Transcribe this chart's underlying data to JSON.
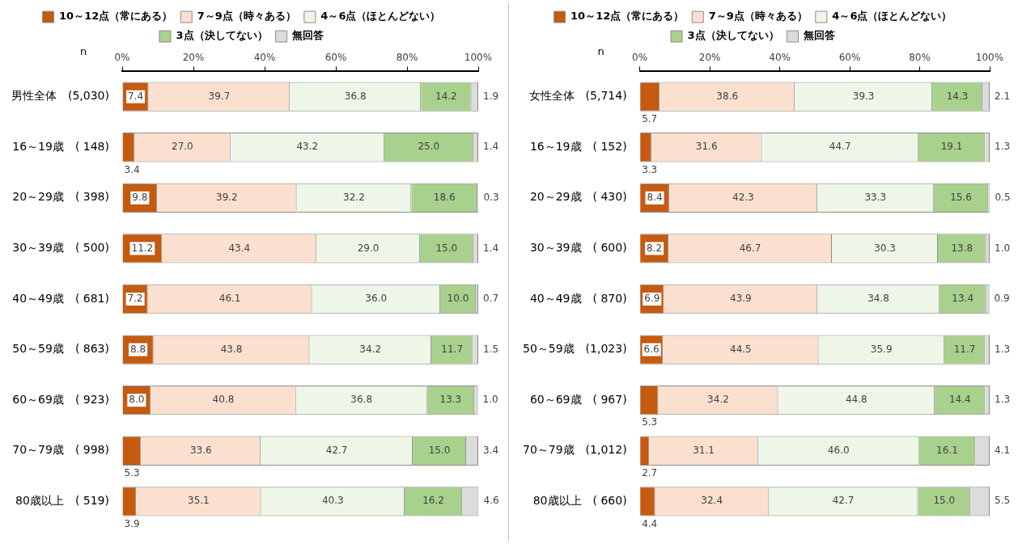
{
  "chart_data": [
    {
      "type": "bar",
      "orientation": "horizontal",
      "stacked": true,
      "legend": "top",
      "annotations": [
        "n"
      ],
      "categories": [
        "男性全体　(5,030)",
        "16～19歳　( 148)",
        "20～29歳　( 398)",
        "30～39歳　( 500)",
        "40～49歳　( 681)",
        "50～59歳　( 863)",
        "60～69歳　( 923)",
        "70～79歳　( 998)",
        "80歳以上　( 519)"
      ],
      "xlim": [
        0,
        100
      ],
      "xticks": [
        {
          "value": 0,
          "label": "0%"
        },
        {
          "value": 20,
          "label": "20%"
        },
        {
          "value": 40,
          "label": "40%"
        },
        {
          "value": 60,
          "label": "60%"
        },
        {
          "value": 80,
          "label": "80%"
        },
        {
          "value": 100,
          "label": "100%"
        }
      ],
      "series": [
        {
          "name": "10～12点（常にある）",
          "color": "#c55a11",
          "values": [
            7.4,
            3.4,
            9.8,
            11.2,
            7.2,
            8.8,
            8.0,
            5.3,
            3.9
          ],
          "value_labels": [
            "7.4",
            "3.4",
            "9.8",
            "11.2",
            "7.2",
            "8.8",
            "8.0",
            "5.3",
            "3.9"
          ]
        },
        {
          "name": "7～9点（時々ある）",
          "color": "#fbe0cf",
          "values": [
            39.7,
            27.0,
            39.2,
            43.4,
            46.1,
            43.8,
            40.8,
            33.6,
            35.1
          ],
          "value_labels": [
            "39.7",
            "27.0",
            "39.2",
            "43.4",
            "46.1",
            "43.8",
            "40.8",
            "33.6",
            "35.1"
          ]
        },
        {
          "name": "4～6点（ほとんどない）",
          "color": "#eef6e8",
          "values": [
            36.8,
            43.2,
            32.2,
            29.0,
            36.0,
            34.2,
            36.8,
            42.7,
            40.3
          ],
          "value_labels": [
            "36.8",
            "43.2",
            "32.2",
            "29.0",
            "36.0",
            "34.2",
            "36.8",
            "42.7",
            "40.3"
          ]
        },
        {
          "name": "3点（決してない）",
          "color": "#a9d18e",
          "values": [
            14.2,
            25.0,
            18.6,
            15.0,
            10.0,
            11.7,
            13.3,
            15.0,
            16.2
          ],
          "value_labels": [
            "14.2",
            "25.0",
            "18.6",
            "15.0",
            "10.0",
            "11.7",
            "13.3",
            "15.0",
            "16.2"
          ]
        },
        {
          "name": "無回答",
          "color": "#dcdcdc",
          "values": [
            1.9,
            1.4,
            0.3,
            1.4,
            0.7,
            1.5,
            1.0,
            3.4,
            4.6
          ],
          "value_labels": [
            "1.9",
            "1.4",
            "0.3",
            "1.4",
            "0.7",
            "1.5",
            "1.0",
            "3.4",
            "4.6"
          ]
        }
      ]
    },
    {
      "type": "bar",
      "orientation": "horizontal",
      "stacked": true,
      "legend": "top",
      "annotations": [
        "n"
      ],
      "categories": [
        "女性全体　(5,714)",
        "16～19歳　( 152)",
        "20～29歳　( 430)",
        "30～39歳　( 600)",
        "40～49歳　( 870)",
        "50～59歳　(1,023)",
        "60～69歳　( 967)",
        "70～79歳　(1,012)",
        "80歳以上　( 660)"
      ],
      "xlim": [
        0,
        100
      ],
      "xticks": [
        {
          "value": 0,
          "label": "0%"
        },
        {
          "value": 20,
          "label": "20%"
        },
        {
          "value": 40,
          "label": "40%"
        },
        {
          "value": 60,
          "label": "60%"
        },
        {
          "value": 80,
          "label": "80%"
        },
        {
          "value": 100,
          "label": "100%"
        }
      ],
      "series": [
        {
          "name": "10～12点（常にある）",
          "color": "#c55a11",
          "values": [
            5.7,
            3.3,
            8.4,
            8.2,
            6.9,
            6.6,
            5.3,
            2.7,
            4.4
          ],
          "value_labels": [
            "5.7",
            "3.3",
            "8.4",
            "8.2",
            "6.9",
            "6.6",
            "5.3",
            "2.7",
            "4.4"
          ]
        },
        {
          "name": "7～9点（時々ある）",
          "color": "#fbe0cf",
          "values": [
            38.6,
            31.6,
            42.3,
            46.7,
            43.9,
            44.5,
            34.2,
            31.1,
            32.4
          ],
          "value_labels": [
            "38.6",
            "31.6",
            "42.3",
            "46.7",
            "43.9",
            "44.5",
            "34.2",
            "31.1",
            "32.4"
          ]
        },
        {
          "name": "4～6点（ほとんどない）",
          "color": "#eef6e8",
          "values": [
            39.3,
            44.7,
            33.3,
            30.3,
            34.8,
            35.9,
            44.8,
            46.0,
            42.7
          ],
          "value_labels": [
            "39.3",
            "44.7",
            "33.3",
            "30.3",
            "34.8",
            "35.9",
            "44.8",
            "46.0",
            "42.7"
          ]
        },
        {
          "name": "3点（決してない）",
          "color": "#a9d18e",
          "values": [
            14.3,
            19.1,
            15.6,
            13.8,
            13.4,
            11.7,
            14.4,
            16.1,
            15.0
          ],
          "value_labels": [
            "14.3",
            "19.1",
            "15.6",
            "13.8",
            "13.4",
            "11.7",
            "14.4",
            "16.1",
            "15.0"
          ]
        },
        {
          "name": "無回答",
          "color": "#dcdcdc",
          "values": [
            2.1,
            1.3,
            0.5,
            1.0,
            0.9,
            1.3,
            1.3,
            4.1,
            5.5
          ],
          "value_labels": [
            "2.1",
            "1.3",
            "0.5",
            "1.0",
            "0.9",
            "1.3",
            "1.3",
            "4.1",
            "5.5"
          ]
        }
      ]
    }
  ]
}
